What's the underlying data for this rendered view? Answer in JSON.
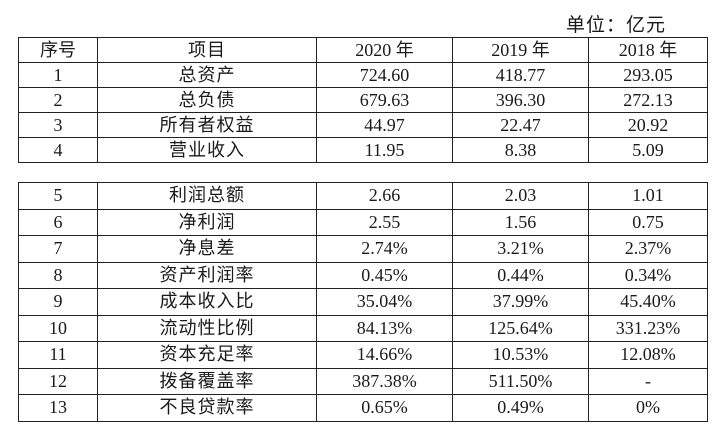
{
  "unit_label": "单位：亿元",
  "headers": [
    "序号",
    "项目",
    "2020 年",
    "2019 年",
    "2018 年"
  ],
  "rows_top": [
    {
      "no": "1",
      "item": "总资产",
      "y2020": "724.60",
      "y2019": "418.77",
      "y2018": "293.05"
    },
    {
      "no": "2",
      "item": "总负债",
      "y2020": "679.63",
      "y2019": "396.30",
      "y2018": "272.13"
    },
    {
      "no": "3",
      "item": "所有者权益",
      "y2020": "44.97",
      "y2019": "22.47",
      "y2018": "20.92"
    },
    {
      "no": "4",
      "item": "营业收入",
      "y2020": "11.95",
      "y2019": "8.38",
      "y2018": "5.09"
    }
  ],
  "rows_bottom": [
    {
      "no": "5",
      "item": "利润总额",
      "y2020": "2.66",
      "y2019": "2.03",
      "y2018": "1.01"
    },
    {
      "no": "6",
      "item": "净利润",
      "y2020": "2.55",
      "y2019": "1.56",
      "y2018": "0.75"
    },
    {
      "no": "7",
      "item": "净息差",
      "y2020": "2.74%",
      "y2019": "3.21%",
      "y2018": "2.37%"
    },
    {
      "no": "8",
      "item": "资产利润率",
      "y2020": "0.45%",
      "y2019": "0.44%",
      "y2018": "0.34%"
    },
    {
      "no": "9",
      "item": "成本收入比",
      "y2020": "35.04%",
      "y2019": "37.99%",
      "y2018": "45.40%"
    },
    {
      "no": "10",
      "item": "流动性比例",
      "y2020": "84.13%",
      "y2019": "125.64%",
      "y2018": "331.23%"
    },
    {
      "no": "11",
      "item": "资本充足率",
      "y2020": "14.66%",
      "y2019": "10.53%",
      "y2018": "12.08%"
    },
    {
      "no": "12",
      "item": "拨备覆盖率",
      "y2020": "387.38%",
      "y2019": "511.50%",
      "y2018": "-"
    },
    {
      "no": "13",
      "item": "不良贷款率",
      "y2020": "0.65%",
      "y2019": "0.49%",
      "y2018": "0%"
    }
  ]
}
